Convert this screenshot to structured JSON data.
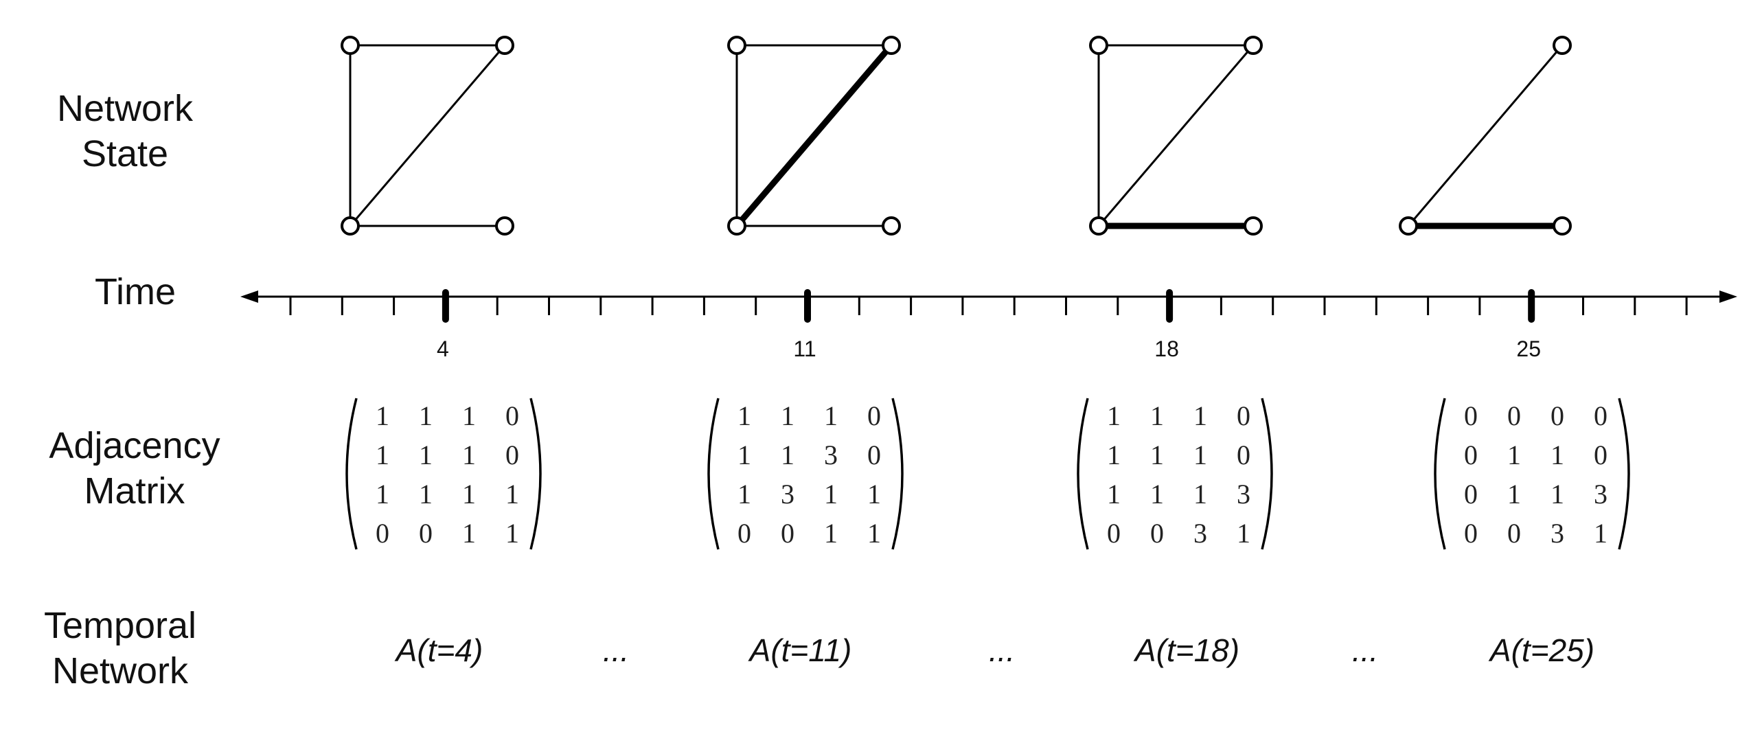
{
  "row_labels": {
    "network_state": [
      "Network",
      "State"
    ],
    "time": "Time",
    "adjacency_matrix": [
      "Adjacency",
      "Matrix"
    ],
    "temporal_network": [
      "Temporal",
      "Network"
    ]
  },
  "timeline": {
    "min": 0,
    "max": 29,
    "marked_times": [
      "4",
      "11",
      "18",
      "25"
    ]
  },
  "snapshots": [
    {
      "time": "4",
      "edges": [
        {
          "from": 0,
          "to": 1,
          "weight": 1
        },
        {
          "from": 0,
          "to": 2,
          "weight": 1
        },
        {
          "from": 1,
          "to": 2,
          "weight": 1
        },
        {
          "from": 2,
          "to": 3,
          "weight": 1
        }
      ],
      "matrix": [
        [
          "1",
          "1",
          "1",
          "0"
        ],
        [
          "1",
          "1",
          "1",
          "0"
        ],
        [
          "1",
          "1",
          "1",
          "1"
        ],
        [
          "0",
          "0",
          "1",
          "1"
        ]
      ],
      "temporal_label": "A(t=4)"
    },
    {
      "time": "11",
      "edges": [
        {
          "from": 0,
          "to": 1,
          "weight": 1
        },
        {
          "from": 0,
          "to": 2,
          "weight": 1
        },
        {
          "from": 1,
          "to": 2,
          "weight": 3
        },
        {
          "from": 2,
          "to": 3,
          "weight": 1
        }
      ],
      "matrix": [
        [
          "1",
          "1",
          "1",
          "0"
        ],
        [
          "1",
          "1",
          "3",
          "0"
        ],
        [
          "1",
          "3",
          "1",
          "1"
        ],
        [
          "0",
          "0",
          "1",
          "1"
        ]
      ],
      "temporal_label": "A(t=11)"
    },
    {
      "time": "18",
      "edges": [
        {
          "from": 0,
          "to": 1,
          "weight": 1
        },
        {
          "from": 0,
          "to": 2,
          "weight": 1
        },
        {
          "from": 1,
          "to": 2,
          "weight": 1
        },
        {
          "from": 2,
          "to": 3,
          "weight": 3
        }
      ],
      "matrix": [
        [
          "1",
          "1",
          "1",
          "0"
        ],
        [
          "1",
          "1",
          "1",
          "0"
        ],
        [
          "1",
          "1",
          "1",
          "3"
        ],
        [
          "0",
          "0",
          "3",
          "1"
        ]
      ],
      "temporal_label": "A(t=18)"
    },
    {
      "time": "25",
      "edges": [
        {
          "from": 1,
          "to": 2,
          "weight": 1
        },
        {
          "from": 2,
          "to": 3,
          "weight": 3
        }
      ],
      "matrix": [
        [
          "0",
          "0",
          "0",
          "0"
        ],
        [
          "0",
          "1",
          "1",
          "0"
        ],
        [
          "0",
          "1",
          "1",
          "3"
        ],
        [
          "0",
          "0",
          "3",
          "1"
        ]
      ],
      "temporal_label": "A(t=25)"
    }
  ],
  "ellipsis": "..."
}
